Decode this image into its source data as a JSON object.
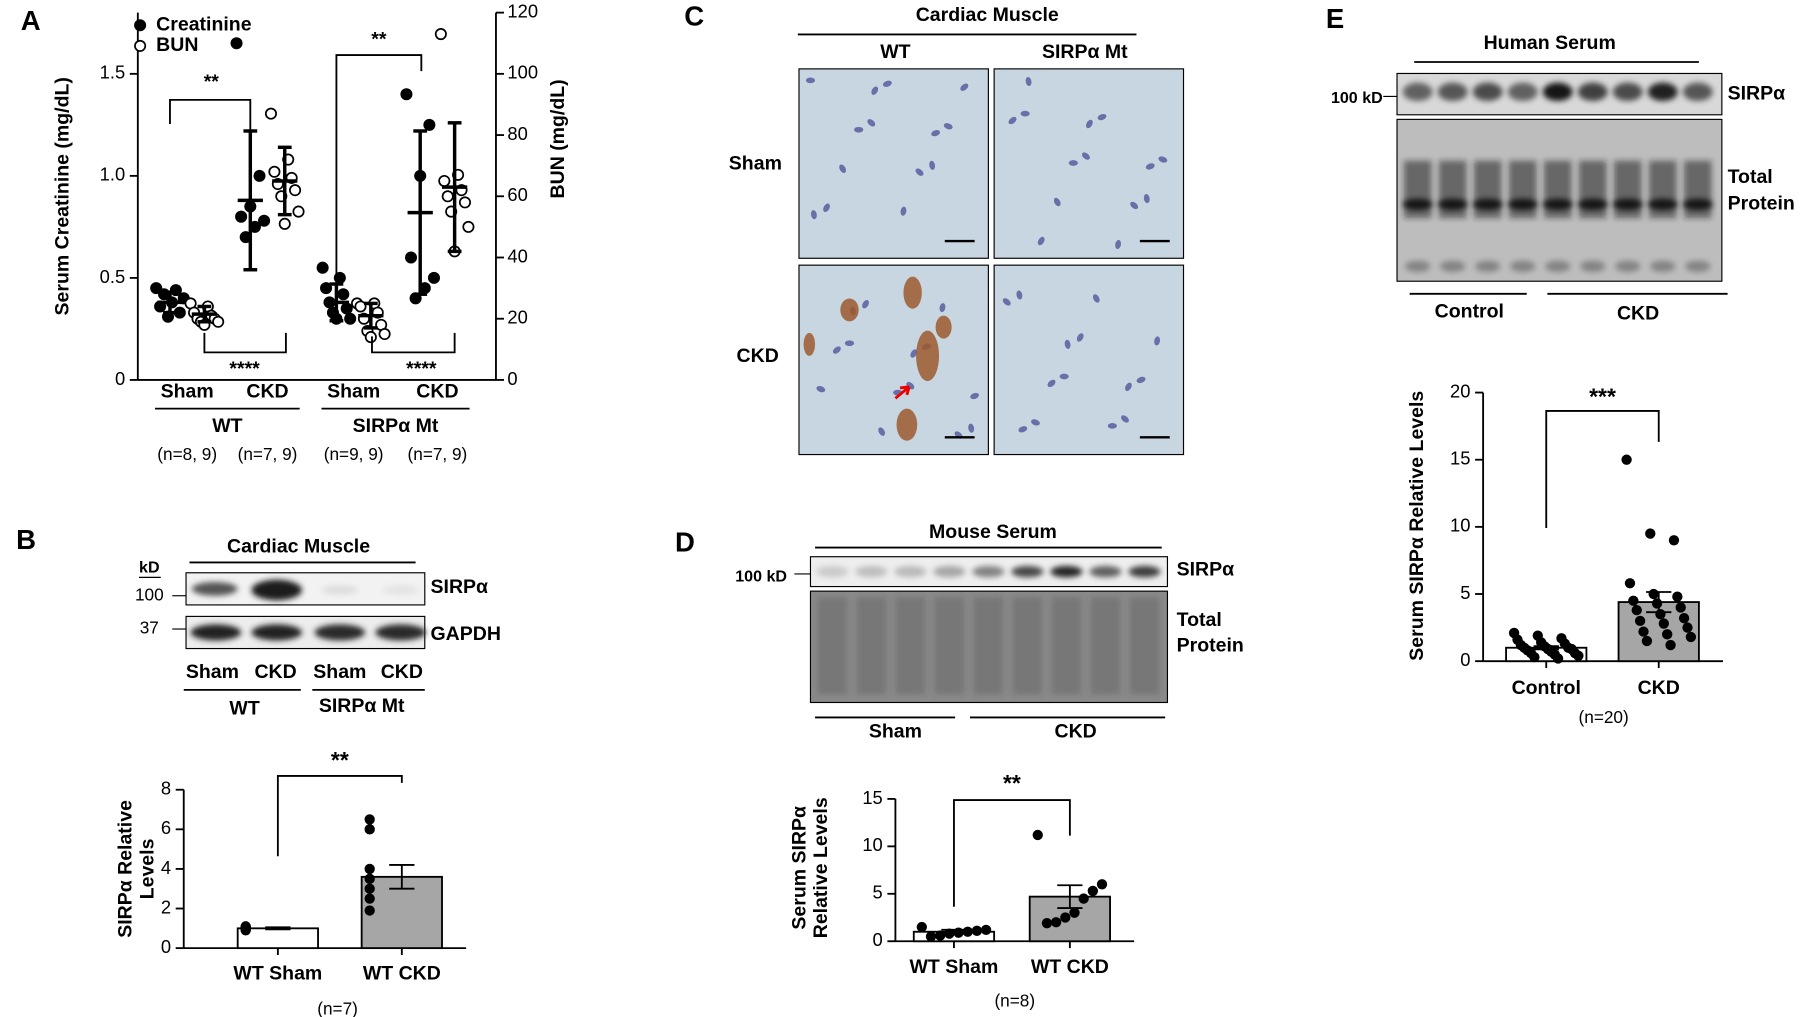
{
  "panel_labels": [
    "A",
    "B",
    "C",
    "D",
    "E"
  ],
  "blot_B": {
    "title": "Cardiac Muscle",
    "unit": "kD",
    "markers": [
      "100",
      "37"
    ],
    "rows": [
      "SIRPα",
      "GAPDH"
    ],
    "lanes": [
      "Sham",
      "CKD",
      "Sham",
      "CKD"
    ],
    "groups": [
      "WT",
      "SIRPα Mt"
    ]
  },
  "histology_C": {
    "title": "Cardiac Muscle",
    "columns": [
      "WT",
      "SIRPα Mt"
    ],
    "rows": [
      "Sham",
      "CKD"
    ]
  },
  "blot_D": {
    "title": "Mouse Serum",
    "marker": "100 kD",
    "rows": [
      "SIRPα",
      [
        "Total",
        "Protein"
      ]
    ],
    "groups": [
      "Sham",
      "CKD"
    ]
  },
  "blot_E": {
    "title": "Human Serum",
    "marker": "100 kD",
    "rows": [
      "SIRPα",
      [
        "Total",
        "Protein"
      ]
    ],
    "groups": [
      "Control",
      "CKD"
    ]
  },
  "chart_data": [
    {
      "type": "dot_plot",
      "ylabel": "Serum Creatinine (mg/dL)",
      "y2label": "BUN (mg/dL)",
      "categories": [
        "Sham",
        "CKD",
        "Sham",
        "CKD"
      ],
      "groups": [
        {
          "name": "WT",
          "n": [
            "(n=8, 9)",
            "(n=7, 9)"
          ]
        },
        {
          "name": "SIRPα Mt",
          "n": [
            "(n=9, 9)",
            "(n=7, 9)"
          ]
        }
      ],
      "series": [
        {
          "name": "Creatinine",
          "color": "#000000",
          "marker": "filled",
          "points": [
            [
              0.45,
              0.44,
              0.42,
              0.4,
              0.38,
              0.36,
              0.33,
              0.31
            ],
            [
              1.65,
              1.0,
              0.85,
              0.8,
              0.78,
              0.75,
              0.7
            ],
            [
              0.55,
              0.5,
              0.45,
              0.42,
              0.38,
              0.35,
              0.33,
              0.3,
              0.3
            ],
            [
              1.4,
              1.25,
              1.0,
              0.6,
              0.5,
              0.45,
              0.4
            ]
          ],
          "means": [
            0.38,
            0.88,
            0.38,
            0.82
          ],
          "sd": [
            0.05,
            0.34,
            0.09,
            0.4
          ]
        },
        {
          "name": "BUN",
          "axis": "y2",
          "color": "#000000",
          "marker": "open",
          "points": [
            [
              25,
              24,
              22,
              21,
              20,
              20,
              19,
              19,
              18
            ],
            [
              87,
              72,
              68,
              66,
              64,
              62,
              60,
              55,
              51
            ],
            [
              25,
              25,
              24,
              22,
              20,
              18,
              16,
              15,
              14
            ],
            [
              113,
              67,
              65,
              62,
              60,
              58,
              55,
              50,
              42
            ]
          ],
          "means": [
            21.5,
            65,
            21,
            63
          ],
          "sd": [
            2.5,
            11,
            4,
            21
          ]
        }
      ],
      "annotations": [
        "**",
        "****",
        "**",
        "****"
      ],
      "ylim": [
        0,
        1.8
      ],
      "yticks": [
        0,
        0.5,
        {
          "value": 1,
          "label": "1.0"
        },
        1.5
      ],
      "y2lim": [
        0,
        120
      ],
      "y2ticks": [
        0,
        20,
        40,
        60,
        80,
        100,
        120
      ]
    },
    {
      "type": "bar",
      "ylabel": [
        "SIRPα Relative",
        "Levels"
      ],
      "categories": [
        "WT Sham",
        "WT CKD"
      ],
      "values": [
        1.0,
        3.6
      ],
      "sem": [
        0.05,
        0.6
      ],
      "colors": [
        "#ffffff",
        "#a6a6a6"
      ],
      "points": [
        [
          1.1,
          1.05,
          1.0,
          1.0,
          0.95,
          0.9,
          1.0
        ],
        [
          6.5,
          6.0,
          4.0,
          3.5,
          3.0,
          2.5,
          1.9
        ]
      ],
      "note": "(n=7)",
      "annotation": "**",
      "ylim": [
        0,
        8
      ],
      "yticks": [
        0,
        2,
        4,
        6,
        8
      ]
    },
    {
      "type": "bar",
      "ylabel": [
        "Serum SIRPα",
        "Relative Levels"
      ],
      "categories": [
        "WT Sham",
        "WT CKD"
      ],
      "values": [
        1.0,
        4.7
      ],
      "sem": [
        0.2,
        1.2
      ],
      "colors": [
        "#ffffff",
        "#a6a6a6"
      ],
      "points": [
        [
          1.5,
          1.2,
          1.1,
          1.0,
          0.9,
          0.8,
          0.6,
          0.5
        ],
        [
          11.2,
          6.0,
          5.3,
          4.5,
          3.0,
          2.5,
          2.0,
          1.9
        ]
      ],
      "note": "(n=8)",
      "annotation": "**",
      "ylim": [
        0,
        15
      ],
      "yticks": [
        0,
        5,
        10,
        15
      ]
    },
    {
      "type": "bar",
      "ylabel": [
        "Serum SIRPα Relative Levels"
      ],
      "categories": [
        "Control",
        "CKD"
      ],
      "values": [
        1.0,
        4.4
      ],
      "sem": [
        0.12,
        0.75
      ],
      "colors": [
        "#ffffff",
        "#a6a6a6"
      ],
      "points": [
        [
          2.1,
          1.9,
          1.7,
          1.6,
          1.4,
          1.3,
          1.2,
          1.1,
          1.0,
          1.0,
          0.9,
          0.9,
          0.8,
          0.7,
          0.6,
          0.6,
          0.5,
          0.4,
          0.3,
          0.2
        ],
        [
          15.0,
          9.5,
          9.0,
          5.8,
          5.0,
          4.8,
          4.5,
          4.3,
          4.0,
          3.8,
          3.5,
          3.2,
          3.0,
          2.8,
          2.5,
          2.2,
          2.0,
          1.8,
          1.5,
          1.2
        ]
      ],
      "note": "(n=20)",
      "annotation": "***",
      "ylim": [
        0,
        20
      ],
      "yticks": [
        0,
        5,
        10,
        15,
        20
      ]
    }
  ]
}
